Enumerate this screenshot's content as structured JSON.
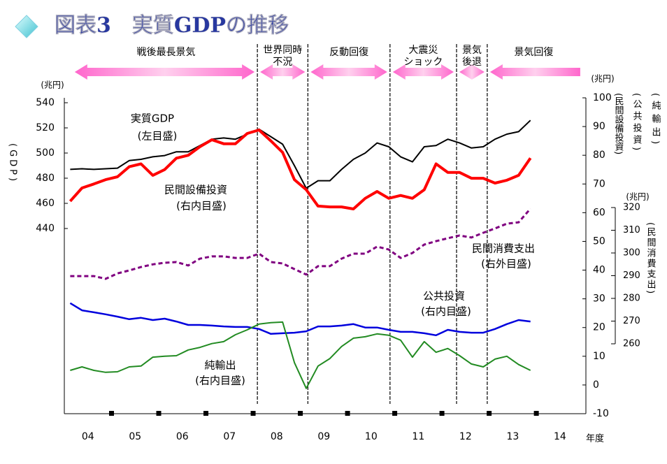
{
  "chart_data": {
    "type": "line",
    "title": "図表3　実質GDPの推移",
    "x_label": "年度",
    "y_unit": "(兆円)",
    "y_label": "(GDP)",
    "y2_unit": "(兆円)",
    "y2_labels": [
      "(民間設備投資)",
      "(公共投資)",
      "(純輸出)"
    ],
    "y3_unit": "(兆円)",
    "y3_label": "(民間消費支出)",
    "xlim": [
      3.5,
      14.55
    ],
    "xticks": [
      {
        "value": 4,
        "label": "04"
      },
      {
        "value": 5,
        "label": "05"
      },
      {
        "value": 6,
        "label": "06"
      },
      {
        "value": 7,
        "label": "07"
      },
      {
        "value": 8,
        "label": "08"
      },
      {
        "value": 9,
        "label": "09"
      },
      {
        "value": 10,
        "label": "10"
      },
      {
        "value": 11,
        "label": "11"
      },
      {
        "value": 12,
        "label": "12"
      },
      {
        "value": 13,
        "label": "13"
      },
      {
        "value": 14,
        "label": "14"
      }
    ],
    "x_boundary_ticks": [
      4.5,
      5.5,
      6.5,
      7.5,
      8.5,
      9.5,
      10.5,
      11.5,
      12.5,
      13.5
    ],
    "ylim": [
      440,
      540
    ],
    "yticks": [
      440,
      460,
      480,
      500,
      520,
      540
    ],
    "y2lim": [
      -10,
      100
    ],
    "y2ticks": [
      -10,
      0,
      10,
      20,
      30,
      40,
      50,
      60,
      70,
      80,
      90,
      100
    ],
    "y3lim": [
      260,
      320
    ],
    "y3ticks": [
      260,
      270,
      280,
      290,
      300,
      310,
      320
    ],
    "periods": [
      {
        "label_lines": [
          "戦後最長景気"
        ],
        "start": 3.72,
        "end": 7.59,
        "arrow": "both"
      },
      {
        "label_lines": [
          "世界同時",
          "不況"
        ],
        "start": 7.59,
        "end": 8.66,
        "arrow": "both"
      },
      {
        "label_lines": [
          "反動回復"
        ],
        "start": 8.66,
        "end": 10.4,
        "arrow": "both"
      },
      {
        "label_lines": [
          "大震災",
          "ショック"
        ],
        "start": 10.4,
        "end": 11.81,
        "arrow": "both"
      },
      {
        "label_lines": [
          "景気",
          "後退"
        ],
        "start": 11.81,
        "end": 12.46,
        "arrow": "both"
      },
      {
        "label_lines": [
          "景気回復"
        ],
        "start": 12.46,
        "end": 14.43,
        "arrow": "left"
      }
    ],
    "period_boundaries": [
      7.59,
      8.66,
      10.4,
      11.81,
      12.46
    ],
    "x": [
      3.625,
      3.875,
      4.125,
      4.375,
      4.625,
      4.875,
      5.125,
      5.375,
      5.625,
      5.875,
      6.125,
      6.375,
      6.625,
      6.875,
      7.125,
      7.375,
      7.625,
      7.875,
      8.125,
      8.375,
      8.625,
      8.875,
      9.125,
      9.375,
      9.625,
      9.875,
      10.125,
      10.375,
      10.625,
      10.875,
      11.125,
      11.375,
      11.625,
      11.875,
      12.125,
      12.375,
      12.625,
      12.875,
      13.125,
      13.375
    ],
    "series": [
      {
        "name": "実質GDP",
        "scale_note": "(左目盛)",
        "axis": "y",
        "color": "#000000",
        "width": 2,
        "dashed": false,
        "values": [
          487,
          487.5,
          487,
          487.5,
          488,
          494,
          495,
          497,
          498,
          501,
          501,
          506,
          511,
          512,
          511,
          515,
          519,
          513,
          507,
          490,
          472,
          478,
          478,
          487,
          495,
          500,
          508,
          505,
          497,
          493,
          505,
          506,
          511,
          508,
          504,
          505,
          511,
          515,
          517,
          526
        ]
      },
      {
        "name": "民間設備投資",
        "scale_note": "(右内目盛)",
        "axis": "y2",
        "color": "#ff0000",
        "width": 4,
        "dashed": false,
        "values": [
          64,
          68.6,
          70,
          71.5,
          72.5,
          76,
          77,
          73,
          75,
          79,
          80,
          83,
          85.4,
          84,
          84,
          87.6,
          88.8,
          85,
          81,
          71.5,
          68,
          62.3,
          62,
          62,
          61.3,
          65,
          67.4,
          65,
          66,
          65,
          68,
          77,
          74,
          74,
          72,
          72,
          70.3,
          71.3,
          73,
          79
        ]
      },
      {
        "name": "民間消費支出",
        "scale_note": "(右外目盛)",
        "axis": "y3",
        "color": "#800080",
        "width": 3,
        "dashed": true,
        "values": [
          289.8,
          289.8,
          289.8,
          288.6,
          291,
          292.3,
          293.8,
          295,
          295.7,
          296,
          294.5,
          297.5,
          298.5,
          298.5,
          297.8,
          297.8,
          299.7,
          296,
          295.4,
          292.9,
          290.5,
          294.2,
          294.2,
          297.5,
          299.7,
          299.7,
          302.8,
          301.5,
          297.8,
          300,
          303.7,
          305.2,
          306.5,
          307.7,
          306.8,
          308.9,
          310.8,
          312.9,
          313.5,
          319.5
        ]
      },
      {
        "name": "公共投資",
        "scale_note": "(右内目盛)",
        "axis": "y2",
        "color": "#0000dd",
        "width": 2.5,
        "dashed": false,
        "values": [
          28.5,
          26,
          25.3,
          24.6,
          23.8,
          22.9,
          23.4,
          22.6,
          23.1,
          22.1,
          20.9,
          20.9,
          20.7,
          20.4,
          20.2,
          20.2,
          19.5,
          17.8,
          18,
          18.2,
          18.7,
          20.4,
          20.4,
          20.7,
          21.2,
          20,
          20,
          19.2,
          18.5,
          18.5,
          18,
          17.3,
          19.2,
          18.5,
          18.2,
          18.2,
          19.5,
          21.2,
          22.6,
          22.1
        ]
      },
      {
        "name": "純輸出",
        "scale_note": "(右内目盛)",
        "axis": "y2",
        "color": "#228b22",
        "width": 2,
        "dashed": false,
        "values": [
          5.1,
          6.3,
          5.1,
          4.4,
          4.6,
          6.3,
          6.6,
          9.7,
          10,
          10.2,
          12.2,
          13.1,
          14.4,
          15.1,
          17.5,
          19.2,
          21.2,
          21.7,
          21.9,
          7.8,
          -1.2,
          6.6,
          9.2,
          13.4,
          16.3,
          16.8,
          17.8,
          17.3,
          15.6,
          9.7,
          15.1,
          11.4,
          12.7,
          10.2,
          7.3,
          6.3,
          9,
          10,
          7.1,
          5.1
        ]
      }
    ]
  }
}
